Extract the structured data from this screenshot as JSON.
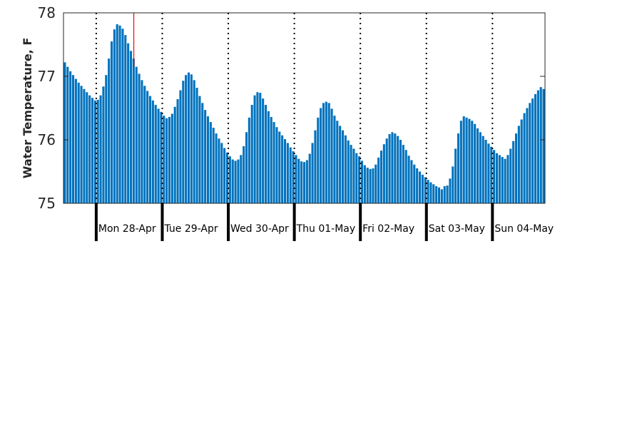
{
  "chart_data": {
    "type": "bar",
    "title": "",
    "xlabel": "",
    "ylabel": "Water Temperature, F",
    "ylim": [
      75,
      78
    ],
    "yticks": [
      75,
      76,
      77,
      78
    ],
    "bar_color": "#0072bd",
    "marker_color": "#ff0000",
    "day_labels": [
      "Mon 28-Apr",
      "Tue 29-Apr",
      "Wed 30-Apr",
      "Thu 01-May",
      "Fri 02-May",
      "Sat 03-May",
      "Sun 04-May"
    ],
    "start_hour_offset": 0,
    "marker_index": 26,
    "values": [
      77.22,
      77.15,
      77.08,
      77.02,
      76.96,
      76.9,
      76.85,
      76.8,
      76.75,
      76.7,
      76.66,
      76.62,
      76.63,
      76.7,
      76.84,
      77.02,
      77.28,
      77.55,
      77.74,
      77.82,
      77.8,
      77.75,
      77.65,
      77.52,
      77.4,
      77.28,
      77.15,
      77.04,
      76.94,
      76.85,
      76.77,
      76.69,
      76.62,
      76.55,
      76.49,
      76.44,
      76.38,
      76.34,
      76.36,
      76.41,
      76.52,
      76.64,
      76.78,
      76.93,
      77.02,
      77.06,
      77.03,
      76.94,
      76.82,
      76.69,
      76.58,
      76.47,
      76.37,
      76.28,
      76.19,
      76.1,
      76.02,
      75.95,
      75.87,
      75.8,
      75.74,
      75.69,
      75.67,
      75.69,
      75.76,
      75.9,
      76.12,
      76.35,
      76.55,
      76.7,
      76.75,
      76.74,
      76.65,
      76.55,
      76.45,
      76.36,
      76.28,
      76.2,
      76.13,
      76.07,
      76.01,
      75.95,
      75.88,
      75.82,
      75.76,
      75.7,
      75.66,
      75.65,
      75.68,
      75.78,
      75.95,
      76.15,
      76.35,
      76.5,
      76.58,
      76.6,
      76.58,
      76.49,
      76.38,
      76.3,
      76.22,
      76.15,
      76.07,
      75.99,
      75.92,
      75.86,
      75.79,
      75.74,
      75.67,
      75.6,
      75.56,
      75.54,
      75.55,
      75.61,
      75.72,
      75.83,
      75.93,
      76.02,
      76.09,
      76.12,
      76.1,
      76.06,
      76.0,
      75.92,
      75.84,
      75.75,
      75.68,
      75.61,
      75.55,
      75.5,
      75.45,
      75.41,
      75.37,
      75.33,
      75.3,
      75.27,
      75.25,
      75.22,
      75.27,
      75.28,
      75.39,
      75.58,
      75.86,
      76.1,
      76.3,
      76.37,
      76.35,
      76.33,
      76.3,
      76.25,
      76.18,
      76.12,
      76.06,
      76.0,
      75.94,
      75.89,
      75.84,
      75.79,
      75.76,
      75.73,
      75.7,
      75.76,
      75.86,
      75.98,
      76.1,
      76.22,
      76.32,
      76.42,
      76.5,
      76.58,
      76.65,
      76.72,
      76.78,
      76.83,
      76.8
    ]
  }
}
